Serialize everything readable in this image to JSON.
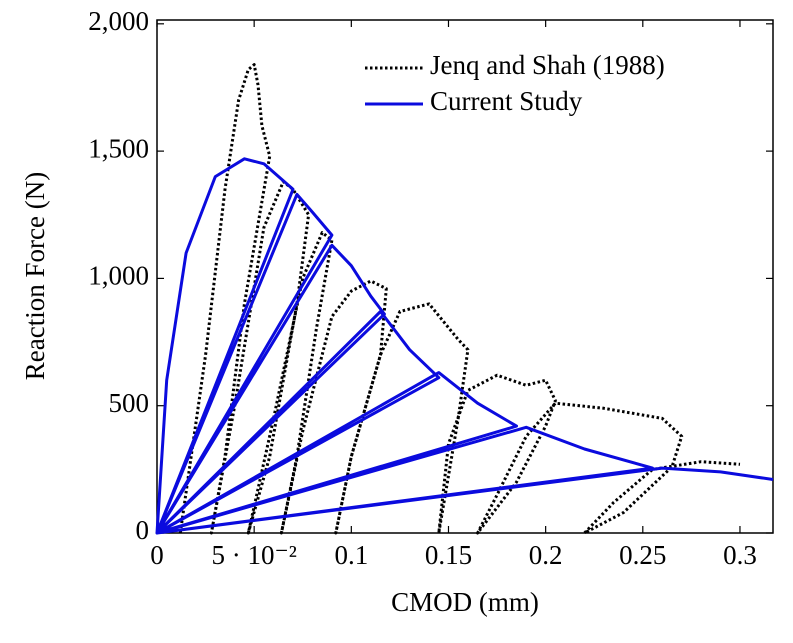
{
  "chart_data": {
    "type": "line",
    "x_label": "CMOD (mm)",
    "y_label": "Reaction Force (N)",
    "xlim": [
      0,
      0.317
    ],
    "ylim": [
      0,
      2015
    ],
    "xticks": [
      0,
      {
        "value": 0.05,
        "label": "5 · 10⁻²"
      },
      0.1,
      0.15,
      0.2,
      0.25,
      0.3
    ],
    "yticks": [
      0,
      500,
      {
        "value": 1000,
        "label": "1,000"
      },
      {
        "value": 1500,
        "label": "1,500"
      },
      {
        "value": 2000,
        "label": "2,000"
      }
    ],
    "legend": "upper right",
    "series": [
      {
        "name": "Jenq and Shah (1988)",
        "color": "#000000",
        "dash": "dotted",
        "x": [
          0.012,
          0.025,
          0.035,
          0.042,
          0.047,
          0.05,
          0.052,
          0.054,
          0.058,
          0.045,
          0.035,
          0.028,
          0.04,
          0.055,
          0.065,
          0.07,
          0.078,
          0.072,
          0.058,
          0.047,
          0.06,
          0.075,
          0.085,
          0.09,
          0.082,
          0.072,
          0.064,
          0.075,
          0.09,
          0.1,
          0.11,
          0.118,
          0.115,
          0.1,
          0.092,
          0.1,
          0.115,
          0.125,
          0.14,
          0.155,
          0.16,
          0.155,
          0.145,
          0.15,
          0.16,
          0.175,
          0.19,
          0.2,
          0.205,
          0.2,
          0.185,
          0.165,
          0.175,
          0.19,
          0.205,
          0.23,
          0.26,
          0.27,
          0.265,
          0.24,
          0.22,
          0.235,
          0.255,
          0.28,
          0.3
        ],
        "values": [
          0,
          700,
          1350,
          1700,
          1820,
          1840,
          1760,
          1600,
          1480,
          900,
          300,
          0,
          500,
          1200,
          1380,
          1350,
          1250,
          900,
          300,
          0,
          450,
          1000,
          1180,
          1150,
          800,
          300,
          0,
          400,
          850,
          950,
          990,
          960,
          700,
          300,
          0,
          300,
          700,
          870,
          900,
          760,
          720,
          450,
          0,
          350,
          560,
          620,
          580,
          600,
          520,
          420,
          200,
          0,
          150,
          380,
          510,
          490,
          450,
          380,
          260,
          80,
          0,
          120,
          250,
          280,
          270
        ]
      },
      {
        "name": "Current Study",
        "color": "#0b0bde",
        "dash": "solid",
        "x": [
          0,
          0.005,
          0.015,
          0.03,
          0.045,
          0.055,
          0.07,
          0,
          0.072,
          0.08,
          0.09,
          0,
          0.09,
          0.1,
          0.11,
          0.117,
          0,
          0.115,
          0.13,
          0.145,
          0,
          0.145,
          0.165,
          0.185,
          0,
          0.19,
          0.22,
          0.255,
          0,
          0.26,
          0.29,
          0.317
        ],
        "values": [
          0,
          600,
          1100,
          1400,
          1470,
          1450,
          1350,
          0,
          1330,
          1260,
          1170,
          0,
          1130,
          1050,
          930,
          860,
          0,
          870,
          720,
          610,
          0,
          630,
          510,
          420,
          0,
          415,
          330,
          255,
          0,
          255,
          240,
          210
        ]
      }
    ]
  }
}
